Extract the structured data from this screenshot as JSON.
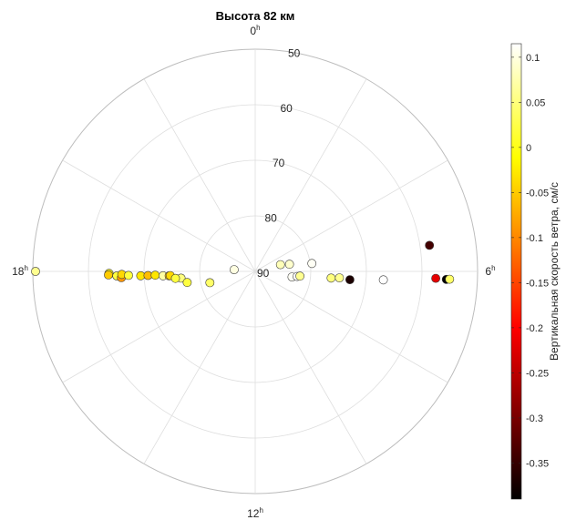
{
  "chart_data": {
    "type": "scatter",
    "coordinate_system": "polar",
    "title": "Высота 82 км",
    "theta_ticks": [
      {
        "hour": "0",
        "sup": "h",
        "angle_deg": 0
      },
      {
        "hour": "6",
        "sup": "h",
        "angle_deg": 90
      },
      {
        "hour": "12",
        "sup": "h",
        "angle_deg": 180
      },
      {
        "hour": "18",
        "sup": "h",
        "angle_deg": 270
      }
    ],
    "theta_grid_step_deg": 30,
    "r_axis": {
      "direction": "reversed",
      "range": [
        50,
        90
      ],
      "ticks": [
        "50",
        "60",
        "70",
        "80",
        "90"
      ],
      "tick_values": [
        50,
        60,
        70,
        80,
        90
      ]
    },
    "grid": true,
    "colorbar": {
      "label": "Вертикальная скорость ветра, см/с",
      "range": [
        -0.39,
        0.115
      ],
      "ticks": [
        "0.1",
        "0.05",
        "0",
        "-0.05",
        "-0.1",
        "-0.15",
        "-0.2",
        "-0.25",
        "-0.3",
        "-0.35"
      ],
      "tick_values": [
        0.1,
        0.05,
        0,
        -0.05,
        -0.1,
        -0.15,
        -0.2,
        -0.25,
        -0.3,
        -0.35
      ],
      "colormap": "hot",
      "placement": "right"
    },
    "points": [
      {
        "theta_deg": 270,
        "r": 50.5,
        "v": 0.06
      },
      {
        "theta_deg": 269.2,
        "r": 63.7,
        "v": 0.0
      },
      {
        "theta_deg": 268.1,
        "r": 65.1,
        "v": 0.02
      },
      {
        "theta_deg": 268.6,
        "r": 63.6,
        "v": -0.05
      },
      {
        "theta_deg": 267.3,
        "r": 65.9,
        "v": -0.09
      },
      {
        "theta_deg": 268.7,
        "r": 66.0,
        "v": -0.04
      },
      {
        "theta_deg": 268.2,
        "r": 67.2,
        "v": 0.02
      },
      {
        "theta_deg": 267.8,
        "r": 69.4,
        "v": -0.03
      },
      {
        "theta_deg": 267.8,
        "r": 70.7,
        "v": -0.06
      },
      {
        "theta_deg": 267.8,
        "r": 72.0,
        "v": -0.03
      },
      {
        "theta_deg": 267.3,
        "r": 73.4,
        "v": 0.07
      },
      {
        "theta_deg": 267.0,
        "r": 74.5,
        "v": -0.06
      },
      {
        "theta_deg": 267.2,
        "r": 74.7,
        "v": -0.04
      },
      {
        "theta_deg": 264.8,
        "r": 76.6,
        "v": 0.05
      },
      {
        "theta_deg": 265.0,
        "r": 75.6,
        "v": 0.02
      },
      {
        "theta_deg": 260.7,
        "r": 77.6,
        "v": 0.02
      },
      {
        "theta_deg": 256.0,
        "r": 81.6,
        "v": 0.04
      },
      {
        "theta_deg": 274.7,
        "r": 86.2,
        "v": 0.1
      },
      {
        "theta_deg": 82.0,
        "r": 79.7,
        "v": 0.11
      },
      {
        "theta_deg": 78.3,
        "r": 83.7,
        "v": 0.09
      },
      {
        "theta_deg": 75.0,
        "r": 85.3,
        "v": 0.08
      },
      {
        "theta_deg": 98.6,
        "r": 83.3,
        "v": 0.11
      },
      {
        "theta_deg": 97.0,
        "r": 82.4,
        "v": 0.12
      },
      {
        "theta_deg": 96.0,
        "r": 81.9,
        "v": 0.06
      },
      {
        "theta_deg": 95.0,
        "r": 76.3,
        "v": 0.05
      },
      {
        "theta_deg": 94.4,
        "r": 74.8,
        "v": 0.06
      },
      {
        "theta_deg": 95.0,
        "r": 72.9,
        "v": -0.37
      },
      {
        "theta_deg": 93.8,
        "r": 66.9,
        "v": 0.12
      },
      {
        "theta_deg": 81.5,
        "r": 58.3,
        "v": -0.34
      },
      {
        "theta_deg": 92.2,
        "r": 57.5,
        "v": -0.22
      },
      {
        "theta_deg": 92.4,
        "r": 55.6,
        "v": -0.42
      },
      {
        "theta_deg": 92.3,
        "r": 55.0,
        "v": 0.04
      }
    ]
  }
}
